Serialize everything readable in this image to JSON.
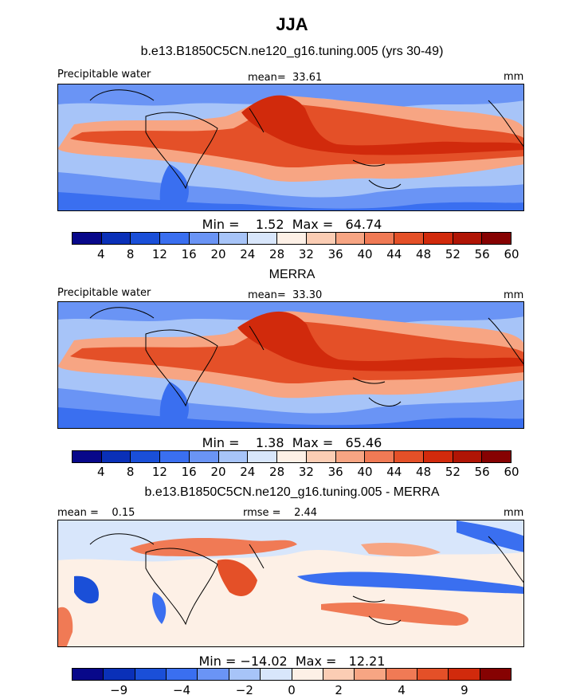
{
  "header": {
    "title": "JJA",
    "subtitle": "b.e13.B1850C5CN.ne120_g16.tuning.005 (yrs 30-49)"
  },
  "chart_data": [
    {
      "type": "heatmap",
      "title": "b.e13.B1850C5CN.ne120_g16.tuning.005 (yrs 30-49)",
      "left_label": "Precipitable water",
      "center_label": "mean=  33.61",
      "right_label": "mm",
      "stats": "Min =    1.52  Max =   64.74",
      "colorbar": {
        "ticks": [
          "4",
          "8",
          "12",
          "16",
          "20",
          "24",
          "28",
          "32",
          "36",
          "40",
          "44",
          "48",
          "52",
          "56",
          "60"
        ],
        "colors": [
          "#08088a",
          "#0a30b8",
          "#1a4fd8",
          "#3a6ff0",
          "#6a94f5",
          "#a7c4f8",
          "#d8e6fb",
          "#fdf0e6",
          "#fbcdb4",
          "#f7a583",
          "#f07a55",
          "#e45028",
          "#d12a0c",
          "#b01505",
          "#860202"
        ]
      }
    },
    {
      "type": "heatmap",
      "title": "MERRA",
      "left_label": "Precipitable water",
      "center_label": "mean=  33.30",
      "right_label": "mm",
      "stats": "Min =    1.38  Max =   65.46",
      "colorbar": {
        "ticks": [
          "4",
          "8",
          "12",
          "16",
          "20",
          "24",
          "28",
          "32",
          "36",
          "40",
          "44",
          "48",
          "52",
          "56",
          "60"
        ],
        "colors": [
          "#08088a",
          "#0a30b8",
          "#1a4fd8",
          "#3a6ff0",
          "#6a94f5",
          "#a7c4f8",
          "#d8e6fb",
          "#fdf0e6",
          "#fbcdb4",
          "#f7a583",
          "#f07a55",
          "#e45028",
          "#d12a0c",
          "#b01505",
          "#860202"
        ]
      }
    },
    {
      "type": "heatmap",
      "title": "b.e13.B1850C5CN.ne120_g16.tuning.005 - MERRA",
      "left_label": "mean =    0.15",
      "center_label": "rmse =    2.44",
      "right_label": "mm",
      "stats": "Min = −14.02  Max =   12.21",
      "colorbar": {
        "ticks": [
          "−9",
          "−4",
          "−2",
          "0",
          "2",
          "4",
          "9"
        ],
        "colors": [
          "#08088a",
          "#0a30b8",
          "#1a4fd8",
          "#3a6ff0",
          "#6a94f5",
          "#a7c4f8",
          "#d8e6fb",
          "#fdf0e6",
          "#fbcdb4",
          "#f7a583",
          "#f07a55",
          "#e45028",
          "#d12a0c",
          "#860202"
        ]
      }
    }
  ]
}
